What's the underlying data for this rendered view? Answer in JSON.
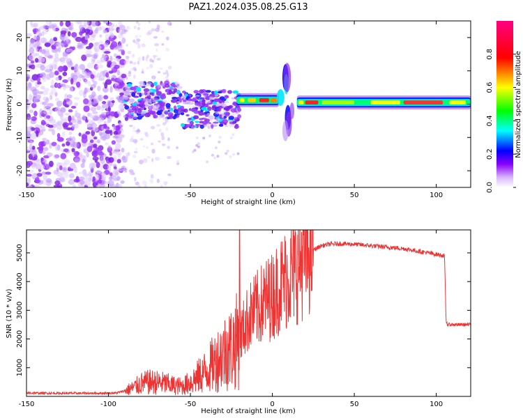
{
  "title": "PAZ1.2024.035.08.25.G13",
  "chart_data": [
    {
      "type": "heatmap",
      "xlabel": "Height of straight line (km)",
      "ylabel": "Frequency (Hz)",
      "xlim": [
        -150,
        121
      ],
      "ylim": [
        -25,
        25
      ],
      "xticks": [
        -150,
        -100,
        -50,
        0,
        50,
        100
      ],
      "yticks": [
        -20,
        -10,
        0,
        10,
        20
      ],
      "colorbar": {
        "label": "Normalized spectral amplitude",
        "range": [
          0,
          1
        ],
        "ticks": [
          0.0,
          0.2,
          0.4,
          0.6,
          0.8
        ],
        "colormap": [
          "#ffffff",
          "#8a00ff",
          "#0000ff",
          "#00ffff",
          "#00ff00",
          "#ffff00",
          "#ff0000",
          "#ff00aa"
        ]
      },
      "description_regions": [
        {
          "x_range": [
            -150,
            -90
          ],
          "freq_range": [
            -25,
            25
          ],
          "amplitude": "low, scattered noise"
        },
        {
          "x_range": [
            -90,
            -20
          ],
          "freq_range": [
            -6,
            6
          ],
          "amplitude": "low to moderate, patchy"
        },
        {
          "x_range": [
            -20,
            5
          ],
          "freq_center": 1,
          "amplitude": "high, narrow line"
        },
        {
          "x_range": [
            5,
            12
          ],
          "freq_range": [
            -12,
            12
          ],
          "amplitude": "transition feature"
        },
        {
          "x_range": [
            15,
            121
          ],
          "freq_center": 0.5,
          "amplitude": "high, narrow line"
        }
      ]
    },
    {
      "type": "line",
      "xlabel": "Height of straight line (km)",
      "ylabel": "SNR (10 * v/v)",
      "xlim": [
        -150,
        121
      ],
      "ylim": [
        0,
        5800
      ],
      "xticks": [
        -150,
        -100,
        -50,
        0,
        50,
        100
      ],
      "yticks": [
        1000,
        2000,
        3000,
        4000,
        5000
      ],
      "color": "#ee3333",
      "series": [
        {
          "x": [
            -150,
            -130,
            -110,
            -95,
            -90,
            -85,
            -80,
            -75,
            -70,
            -65,
            -60,
            -55,
            -50,
            -45,
            -40,
            -35,
            -30,
            -25,
            -22,
            -20,
            -18,
            -15,
            -10,
            -5,
            0,
            5,
            10,
            15,
            20,
            25,
            30,
            35,
            40,
            50,
            60,
            70,
            80,
            90,
            100,
            105,
            106,
            107,
            110,
            121
          ],
          "y": [
            120,
            110,
            110,
            120,
            200,
            300,
            450,
            500,
            480,
            450,
            380,
            350,
            500,
            700,
            900,
            1200,
            1500,
            1700,
            1900,
            2100,
            2300,
            2700,
            3000,
            3300,
            3500,
            3900,
            4200,
            4500,
            4900,
            5100,
            5250,
            5300,
            5320,
            5300,
            5250,
            5200,
            5150,
            5050,
            4950,
            4900,
            2600,
            2500,
            2500,
            2500
          ]
        }
      ],
      "spike": {
        "x": -20,
        "y": 5800
      }
    }
  ]
}
